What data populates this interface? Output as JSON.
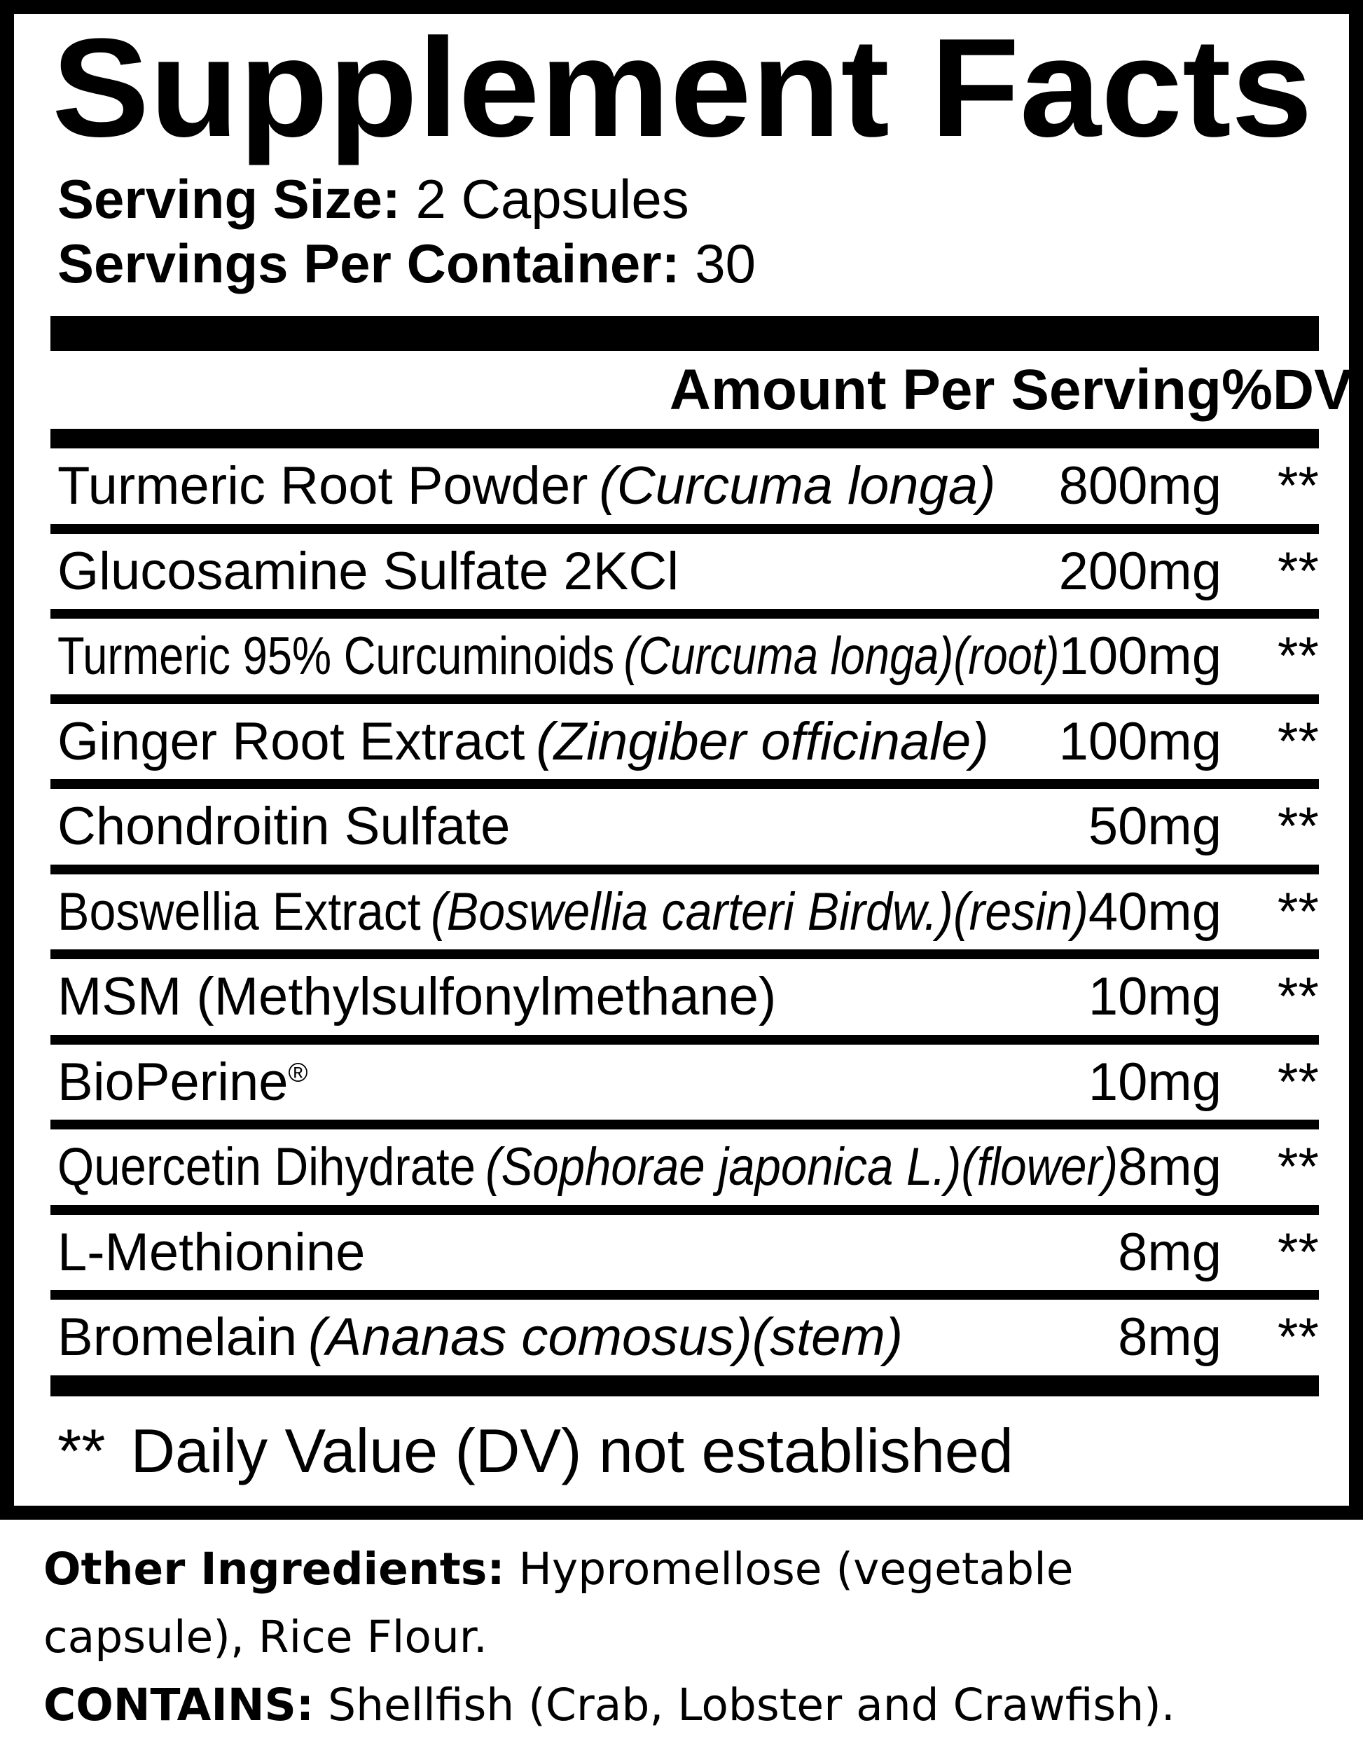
{
  "panel": {
    "title": "Supplement Facts",
    "serving_size_label": "Serving Size:",
    "serving_size_value": "2 Capsules",
    "servings_label": "Servings Per Container:",
    "servings_value": "30",
    "header": {
      "amount": "Amount Per Serving",
      "dv": "%DV"
    },
    "rows": [
      {
        "name": "Turmeric Root Powder",
        "sup": "",
        "latin": "(Curcuma longa)",
        "amount": "800mg",
        "dv": "**"
      },
      {
        "name": "Glucosamine Sulfate 2KCl",
        "sup": "",
        "latin": "",
        "amount": "200mg",
        "dv": "**"
      },
      {
        "name": "Turmeric 95% Curcuminoids",
        "sup": "",
        "latin": "(Curcuma longa)(root)",
        "amount": "100mg",
        "dv": "**"
      },
      {
        "name": "Ginger Root Extract",
        "sup": "",
        "latin": "(Zingiber officinale)",
        "amount": "100mg",
        "dv": "**"
      },
      {
        "name": "Chondroitin Sulfate",
        "sup": "",
        "latin": "",
        "amount": "50mg",
        "dv": "**"
      },
      {
        "name": "Boswellia Extract",
        "sup": "",
        "latin": "(Boswellia carteri Birdw.)(resin)",
        "amount": "40mg",
        "dv": "**"
      },
      {
        "name": "MSM (Methylsulfonylmethane)",
        "sup": "",
        "latin": "",
        "amount": "10mg",
        "dv": "**"
      },
      {
        "name": "BioPerine",
        "sup": "®",
        "latin": "",
        "amount": "10mg",
        "dv": "**"
      },
      {
        "name": "Quercetin Dihydrate",
        "sup": "",
        "latin": "(Sophorae japonica L.)(flower)",
        "amount": "8mg",
        "dv": "**"
      },
      {
        "name": "L-Methionine",
        "sup": "",
        "latin": "",
        "amount": "8mg",
        "dv": "**"
      },
      {
        "name": "Bromelain",
        "sup": "",
        "latin": "(Ananas comosus)(stem)",
        "amount": "8mg",
        "dv": "**"
      }
    ],
    "footnote": {
      "mark": "**",
      "text": "Daily Value (DV) not established"
    }
  },
  "bottom": {
    "lines": [
      {
        "bold": "Other Ingredients:",
        "text": " Hypromellose (vegetable"
      },
      {
        "bold": "",
        "text": "capsule), Rice Flour."
      },
      {
        "bold": "CONTAINS:",
        "text": " Shellfish (Crab, Lobster and Crawfish)."
      }
    ]
  },
  "colors": {
    "ink": "#000000",
    "paper": "#ffffff"
  }
}
